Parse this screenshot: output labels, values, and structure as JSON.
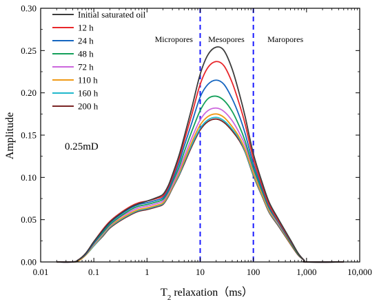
{
  "chart_data": {
    "type": "line",
    "x_scale": "log",
    "xlim": [
      0.01,
      10000
    ],
    "ylim": [
      0.0,
      0.3
    ],
    "x_ticks": [
      "0.01",
      "0.1",
      "1",
      "10",
      "100",
      "1,000",
      "10,000"
    ],
    "y_ticks": [
      "0.00",
      "0.05",
      "0.10",
      "0.15",
      "0.20",
      "0.25",
      "0.30"
    ],
    "xlabel": "T2 relaxation（ms）",
    "xlabel_parts": {
      "prefix": "T",
      "subscript": "2",
      "suffix": " relaxation（ms）"
    },
    "ylabel": "Amplitude",
    "permeability_label": "0.25mD",
    "legend_position": "top-left",
    "boundaries": [
      {
        "x": 10,
        "color": "#1a1aff",
        "style": "dashed"
      },
      {
        "x": 100,
        "color": "#1a1aff",
        "style": "dashed"
      }
    ],
    "region_labels": [
      {
        "label": "Micropores",
        "x": 3.2
      },
      {
        "label": "Mesopores",
        "x": 31
      },
      {
        "label": "Maropores",
        "x": 400
      }
    ],
    "x": [
      0.02,
      0.04,
      0.05,
      0.07,
      0.1,
      0.15,
      0.2,
      0.3,
      0.5,
      0.7,
      1,
      1.5,
      2,
      2.5,
      3,
      4,
      5,
      7,
      10,
      14,
      20,
      28,
      40,
      55,
      70,
      100,
      150,
      200,
      300,
      500,
      700,
      900,
      1000,
      5000
    ],
    "series": [
      {
        "name": "Initial saturated oil",
        "color": "#3d3d3d",
        "values": [
          0,
          0,
          0.002,
          0.01,
          0.024,
          0.038,
          0.047,
          0.056,
          0.065,
          0.069,
          0.072,
          0.076,
          0.08,
          0.09,
          0.103,
          0.126,
          0.148,
          0.183,
          0.222,
          0.245,
          0.254,
          0.25,
          0.228,
          0.198,
          0.172,
          0.128,
          0.092,
          0.07,
          0.05,
          0.026,
          0.01,
          0.002,
          0,
          0
        ]
      },
      {
        "name": "12 h",
        "color": "#e8262a",
        "values": [
          0,
          0,
          0.002,
          0.01,
          0.024,
          0.039,
          0.048,
          0.057,
          0.066,
          0.07,
          0.072,
          0.075,
          0.078,
          0.088,
          0.1,
          0.122,
          0.143,
          0.175,
          0.21,
          0.23,
          0.237,
          0.232,
          0.212,
          0.186,
          0.163,
          0.122,
          0.088,
          0.067,
          0.048,
          0.025,
          0.01,
          0.002,
          0,
          0
        ]
      },
      {
        "name": "24 h",
        "color": "#1565c0",
        "values": [
          0,
          0,
          0.002,
          0.009,
          0.023,
          0.037,
          0.046,
          0.055,
          0.064,
          0.068,
          0.07,
          0.073,
          0.076,
          0.085,
          0.097,
          0.117,
          0.137,
          0.165,
          0.195,
          0.21,
          0.215,
          0.21,
          0.193,
          0.172,
          0.152,
          0.116,
          0.085,
          0.065,
          0.047,
          0.024,
          0.01,
          0.002,
          0,
          0
        ]
      },
      {
        "name": "48 h",
        "color": "#14a05a",
        "values": [
          0,
          0,
          0.002,
          0.009,
          0.022,
          0.035,
          0.044,
          0.053,
          0.062,
          0.066,
          0.068,
          0.071,
          0.074,
          0.083,
          0.094,
          0.112,
          0.13,
          0.155,
          0.179,
          0.193,
          0.196,
          0.191,
          0.178,
          0.16,
          0.143,
          0.111,
          0.082,
          0.063,
          0.046,
          0.023,
          0.009,
          0.002,
          0,
          0
        ]
      },
      {
        "name": "72 h",
        "color": "#cc66dd",
        "values": [
          0,
          0,
          0.002,
          0.009,
          0.021,
          0.034,
          0.043,
          0.052,
          0.06,
          0.064,
          0.066,
          0.069,
          0.072,
          0.081,
          0.091,
          0.108,
          0.124,
          0.147,
          0.168,
          0.179,
          0.182,
          0.178,
          0.167,
          0.152,
          0.138,
          0.109,
          0.081,
          0.062,
          0.045,
          0.023,
          0.009,
          0.002,
          0,
          0
        ]
      },
      {
        "name": "110 h",
        "color": "#f09a16",
        "values": [
          0,
          0,
          0.001,
          0.008,
          0.02,
          0.033,
          0.042,
          0.05,
          0.058,
          0.062,
          0.064,
          0.067,
          0.07,
          0.079,
          0.089,
          0.105,
          0.12,
          0.142,
          0.162,
          0.172,
          0.175,
          0.171,
          0.16,
          0.147,
          0.133,
          0.105,
          0.078,
          0.06,
          0.044,
          0.022,
          0.009,
          0.002,
          0,
          0
        ]
      },
      {
        "name": "160 h",
        "color": "#1fb8cc",
        "values": [
          0,
          0,
          0.001,
          0.008,
          0.019,
          0.032,
          0.041,
          0.049,
          0.057,
          0.061,
          0.063,
          0.066,
          0.069,
          0.078,
          0.088,
          0.103,
          0.118,
          0.139,
          0.158,
          0.168,
          0.171,
          0.167,
          0.157,
          0.145,
          0.131,
          0.103,
          0.077,
          0.059,
          0.043,
          0.022,
          0.009,
          0.002,
          0,
          0
        ]
      },
      {
        "name": "200 h",
        "color": "#7a2424",
        "values": [
          0,
          0,
          0.001,
          0.008,
          0.019,
          0.031,
          0.04,
          0.048,
          0.056,
          0.06,
          0.062,
          0.065,
          0.068,
          0.077,
          0.087,
          0.102,
          0.116,
          0.137,
          0.156,
          0.166,
          0.169,
          0.165,
          0.155,
          0.143,
          0.13,
          0.102,
          0.076,
          0.058,
          0.042,
          0.021,
          0.008,
          0.002,
          0,
          0
        ]
      }
    ]
  }
}
